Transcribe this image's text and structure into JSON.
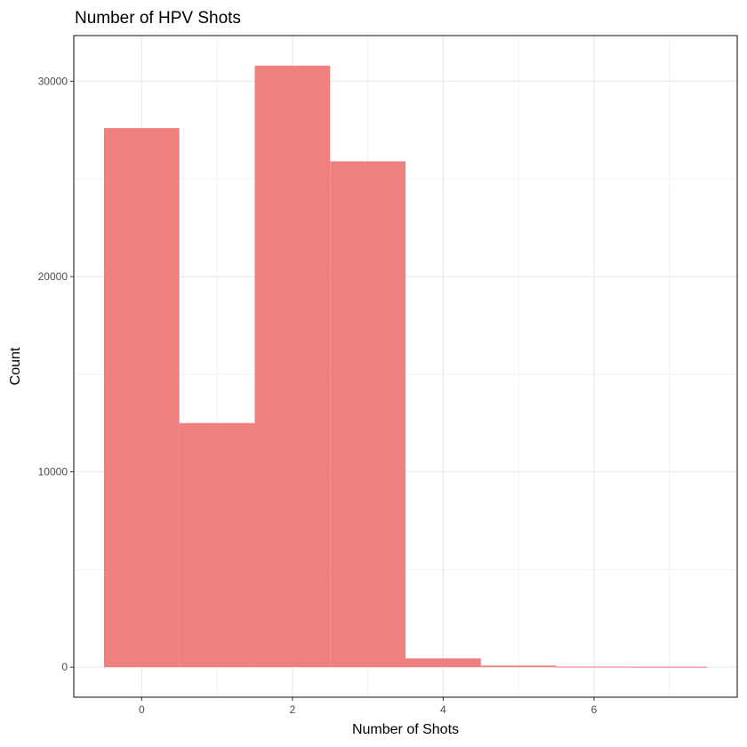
{
  "chart_data": {
    "type": "bar",
    "title": "Number of HPV Shots",
    "xlabel": "Number of Shots",
    "ylabel": "Count",
    "x": [
      0,
      1,
      2,
      3,
      4,
      5,
      6,
      7
    ],
    "values": [
      27600,
      12500,
      30800,
      25900,
      450,
      80,
      30,
      20
    ],
    "bin_width": 1,
    "xlim": [
      -0.9,
      7.9
    ],
    "ylim": [
      -1540,
      32340
    ],
    "x_ticks": [
      0,
      2,
      4,
      6
    ],
    "y_ticks": [
      0,
      10000,
      20000,
      30000
    ],
    "grid": true,
    "legend": "none",
    "colors": {
      "bar": "#f08080",
      "grid": "#ebebeb",
      "border": "#333333",
      "tick_label": "#4d4d4d"
    }
  }
}
